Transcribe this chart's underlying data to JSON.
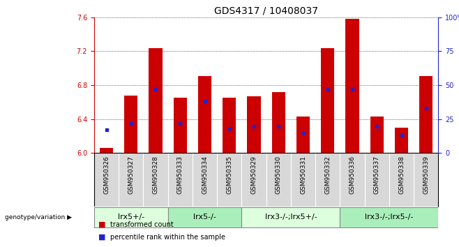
{
  "title": "GDS4317 / 10408037",
  "samples": [
    "GSM950326",
    "GSM950327",
    "GSM950328",
    "GSM950333",
    "GSM950334",
    "GSM950335",
    "GSM950329",
    "GSM950330",
    "GSM950331",
    "GSM950332",
    "GSM950336",
    "GSM950337",
    "GSM950338",
    "GSM950339"
  ],
  "transformed_count": [
    6.06,
    6.68,
    7.24,
    6.65,
    6.91,
    6.65,
    6.67,
    6.72,
    6.43,
    7.24,
    7.58,
    6.43,
    6.3,
    6.91
  ],
  "percentile_rank_pct": [
    17,
    22,
    47,
    22,
    38,
    18,
    20,
    20,
    15,
    47,
    47,
    20,
    13,
    33
  ],
  "bar_color": "#cc0000",
  "dot_color": "#2222cc",
  "ylim_left": [
    6.0,
    7.6
  ],
  "ylim_right": [
    0,
    100
  ],
  "yticks_left": [
    6.0,
    6.4,
    6.8,
    7.2,
    7.6
  ],
  "yticks_right": [
    0,
    25,
    50,
    75,
    100
  ],
  "groups": [
    {
      "label": "lrx5+/-",
      "start": 0,
      "end": 3,
      "color": "#ddffdd"
    },
    {
      "label": "lrx5-/-",
      "start": 3,
      "end": 6,
      "color": "#aaeebb"
    },
    {
      "label": "lrx3-/-;lrx5+/-",
      "start": 6,
      "end": 10,
      "color": "#ddffdd"
    },
    {
      "label": "lrx3-/-;lrx5-/-",
      "start": 10,
      "end": 14,
      "color": "#aaeebb"
    }
  ],
  "legend_red": "transformed count",
  "legend_blue": "percentile rank within the sample",
  "background_color": "#ffffff",
  "sample_bg": "#d8d8d8",
  "title_fontsize": 10,
  "tick_fontsize": 7,
  "sample_fontsize": 6.5,
  "group_fontsize": 8
}
